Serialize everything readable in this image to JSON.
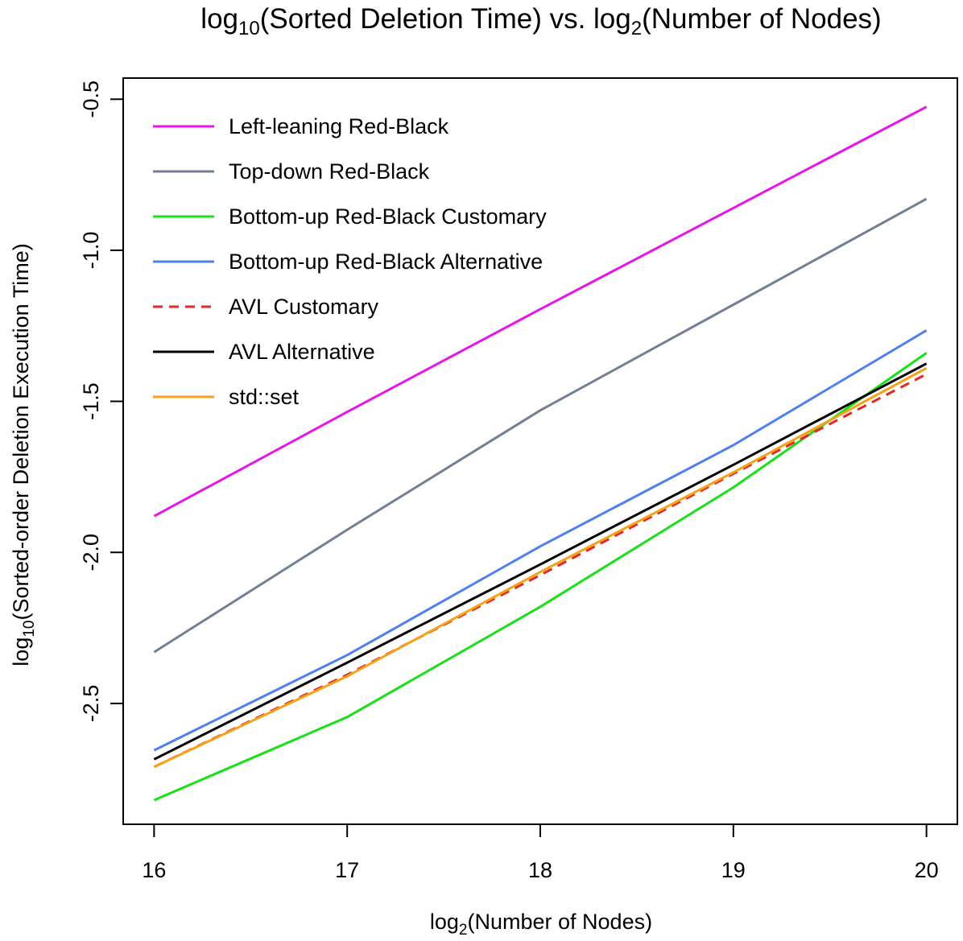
{
  "chart_data": {
    "type": "line",
    "title": {
      "prefix": "log",
      "sub": "10",
      "middle": "(Sorted Deletion Time) vs. log",
      "sub2": "2",
      "suffix": "(Number of Nodes)"
    },
    "xlabel": {
      "prefix": "log",
      "sub": "2",
      "suffix": "(Number of Nodes)"
    },
    "ylabel": {
      "prefix": "log",
      "sub": "10",
      "suffix": "(Sorted-order Deletion Execution Time)"
    },
    "x": [
      16,
      17,
      18,
      19,
      20
    ],
    "xlim": [
      15.84,
      20.16
    ],
    "ylim": [
      -2.9,
      -0.43
    ],
    "xticks": [
      "16",
      "17",
      "18",
      "19",
      "20"
    ],
    "yticks": [
      {
        "value": -0.5,
        "label": "-0.5"
      },
      {
        "value": -1.0,
        "label": "-1.0"
      },
      {
        "value": -1.5,
        "label": "-1.5"
      },
      {
        "value": -2.0,
        "label": "-2.0"
      },
      {
        "value": -2.5,
        "label": "-2.5"
      }
    ],
    "legend_position": "top-left",
    "series": [
      {
        "name": "Left-leaning Red-Black",
        "color": "#e815e8",
        "dashed": false,
        "values": [
          -1.88,
          -1.535,
          -1.195,
          -0.86,
          -0.525
        ]
      },
      {
        "name": "Top-down Red-Black",
        "color": "#738093",
        "dashed": false,
        "values": [
          -2.33,
          -1.925,
          -1.53,
          -1.18,
          -0.83
        ]
      },
      {
        "name": "Bottom-up Red-Black Customary",
        "color": "#1ae01a",
        "dashed": false,
        "values": [
          -2.82,
          -2.545,
          -2.18,
          -1.785,
          -1.34
        ]
      },
      {
        "name": "Bottom-up Red-Black Alternative",
        "color": "#4f80ee",
        "dashed": false,
        "values": [
          -2.655,
          -2.34,
          -1.98,
          -1.645,
          -1.265
        ]
      },
      {
        "name": "AVL Customary",
        "color": "#e62727",
        "dashed": true,
        "values": [
          -2.71,
          -2.405,
          -2.075,
          -1.74,
          -1.41
        ]
      },
      {
        "name": "AVL Alternative",
        "color": "#000000",
        "dashed": false,
        "values": [
          -2.685,
          -2.365,
          -2.04,
          -1.71,
          -1.375
        ]
      },
      {
        "name": "std::set",
        "color": "#f5a21a",
        "dashed": false,
        "values": [
          -2.71,
          -2.41,
          -2.065,
          -1.735,
          -1.39
        ]
      }
    ]
  }
}
